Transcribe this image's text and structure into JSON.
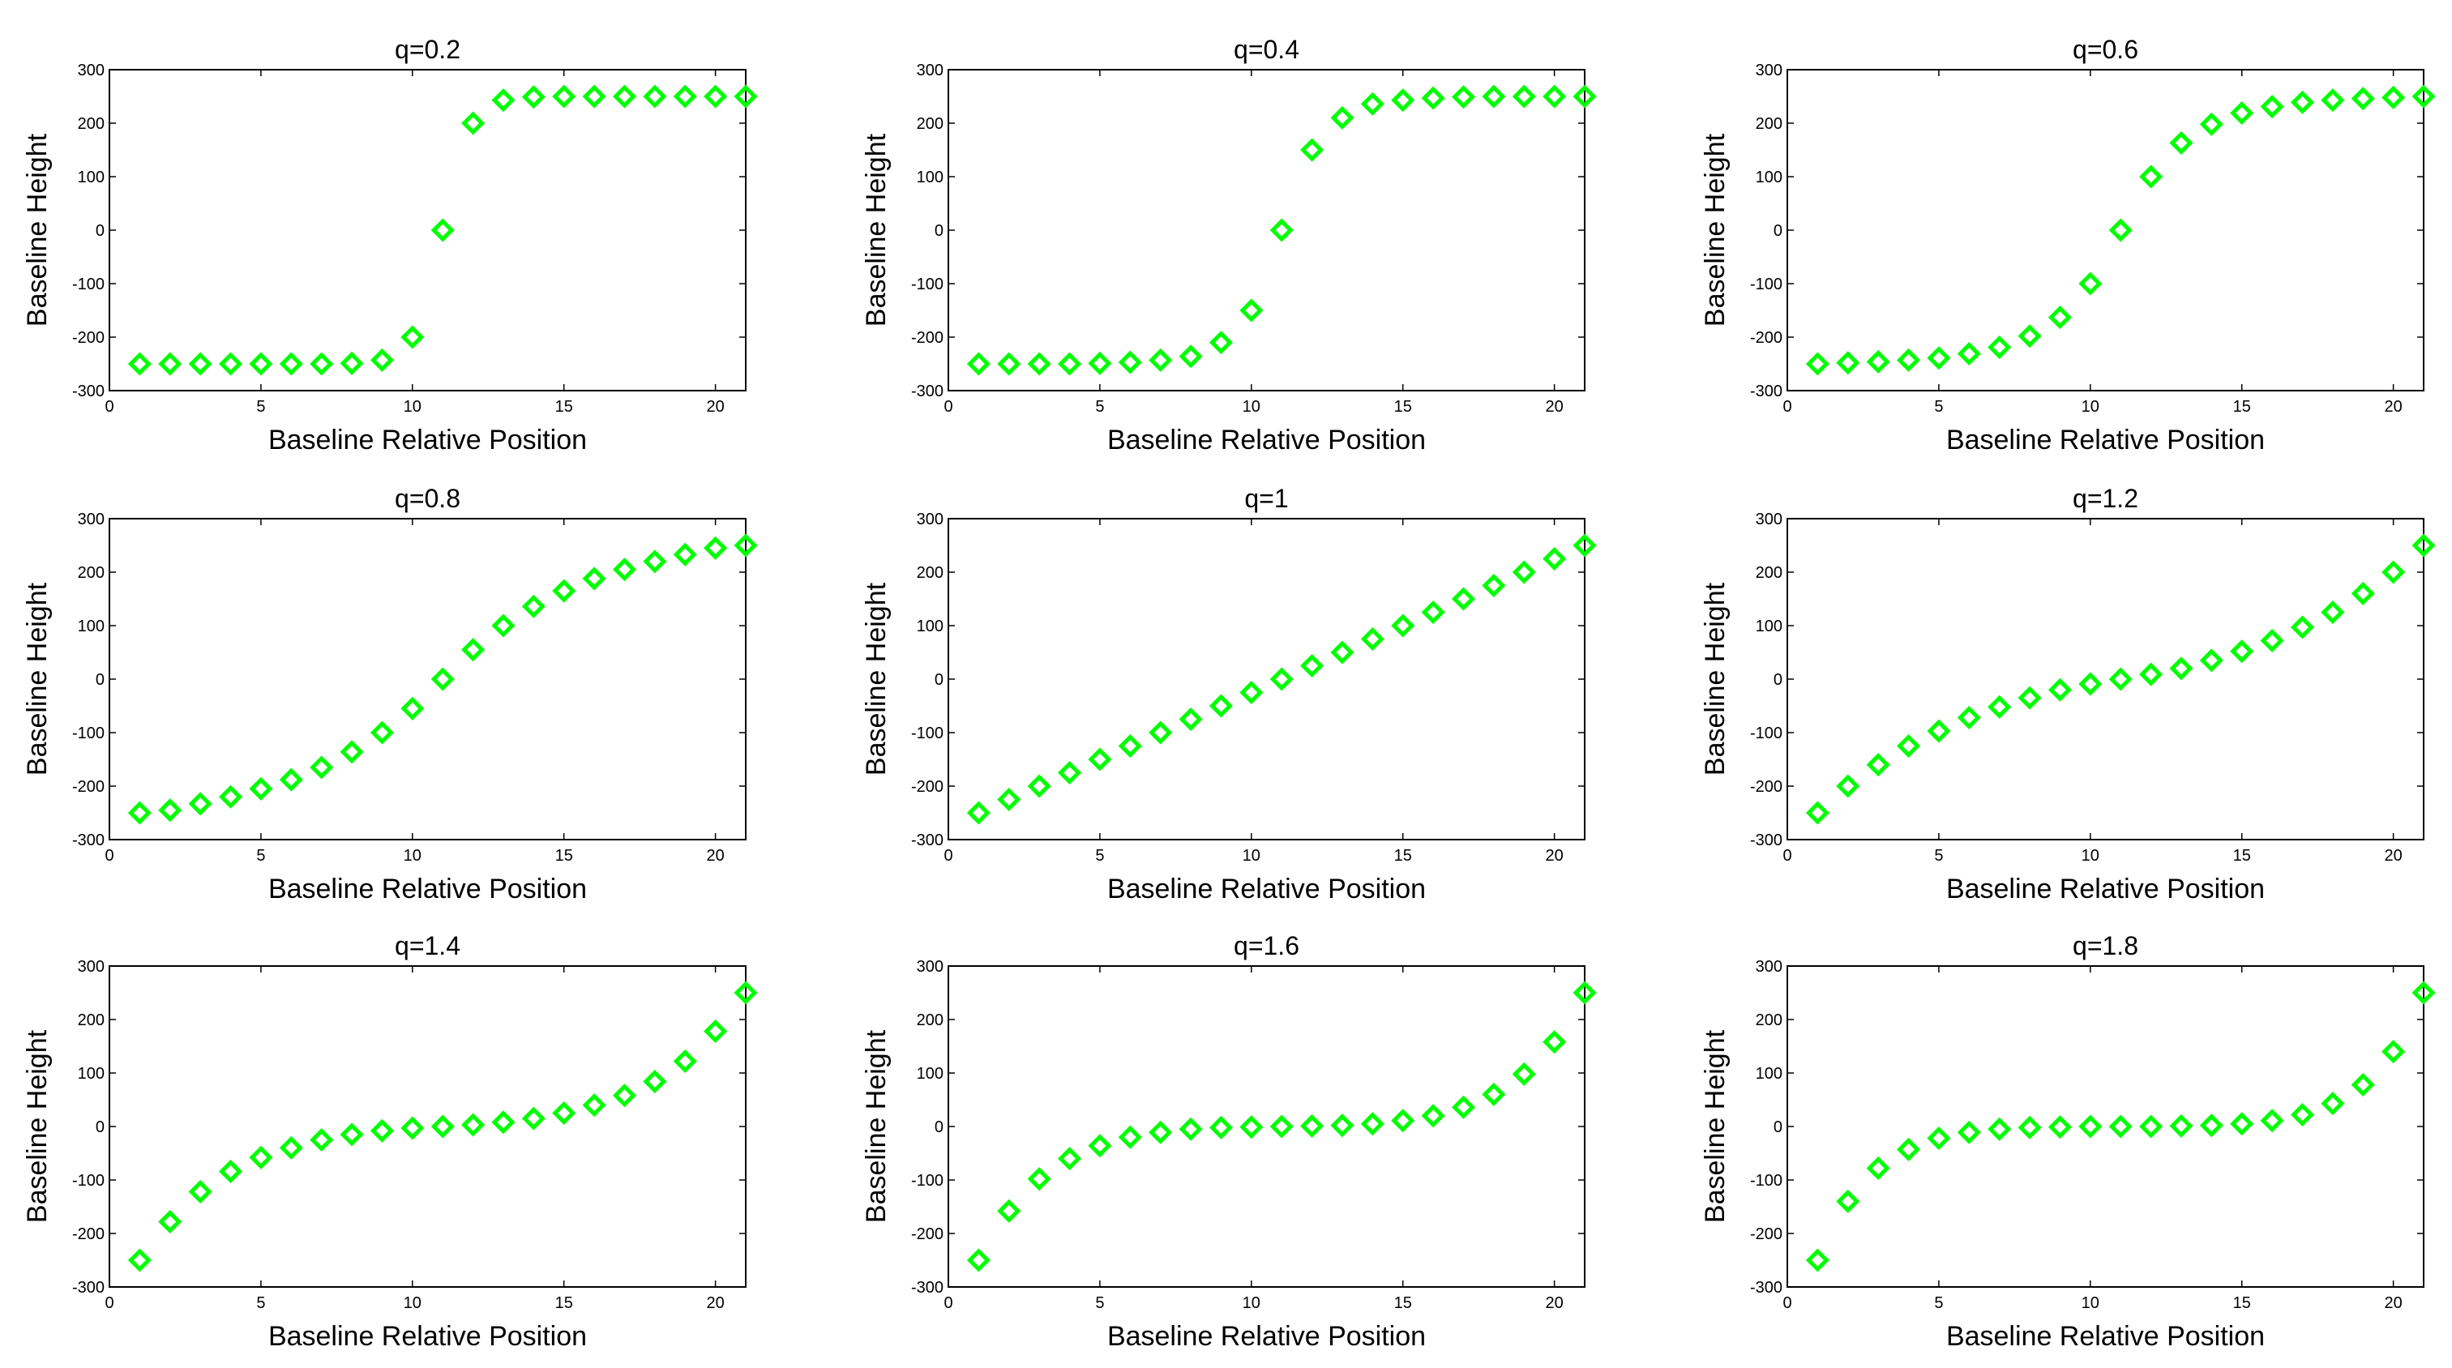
{
  "figure": {
    "xlabel": "Baseline Relative Position",
    "ylabel": "Baseline Height",
    "marker_color": "#00ff00"
  },
  "chart_data": [
    {
      "type": "scatter",
      "title": "q=0.2",
      "xlabel": "Baseline Relative Position",
      "ylabel": "Baseline Height",
      "xlim": [
        0,
        21
      ],
      "ylim": [
        -300,
        300
      ],
      "xticks": [
        0,
        5,
        10,
        15,
        20
      ],
      "yticks": [
        300,
        200,
        100,
        0,
        -100,
        -200,
        -300
      ],
      "marker": "diamond",
      "x": [
        1,
        2,
        3,
        4,
        5,
        6,
        7,
        8,
        9,
        10,
        11,
        12,
        13,
        14,
        15,
        16,
        17,
        18,
        19,
        20,
        21
      ],
      "y": [
        -250,
        -250,
        -250,
        -250,
        -250,
        -250,
        -250,
        -249,
        -243,
        -200,
        0,
        200,
        243,
        249,
        250,
        250,
        250,
        250,
        250,
        250,
        250
      ]
    },
    {
      "type": "scatter",
      "title": "q=0.4",
      "xlabel": "Baseline Relative Position",
      "ylabel": "Baseline Height",
      "xlim": [
        0,
        21
      ],
      "ylim": [
        -300,
        300
      ],
      "xticks": [
        0,
        5,
        10,
        15,
        20
      ],
      "yticks": [
        300,
        200,
        100,
        0,
        -100,
        -200,
        -300
      ],
      "marker": "diamond",
      "x": [
        1,
        2,
        3,
        4,
        5,
        6,
        7,
        8,
        9,
        10,
        11,
        12,
        13,
        14,
        15,
        16,
        17,
        18,
        19,
        20,
        21
      ],
      "y": [
        -250,
        -250,
        -250,
        -250,
        -249,
        -247,
        -243,
        -236,
        -210,
        -150,
        0,
        150,
        210,
        236,
        243,
        247,
        249,
        250,
        250,
        250,
        250
      ]
    },
    {
      "type": "scatter",
      "title": "q=0.6",
      "xlabel": "Baseline Relative Position",
      "ylabel": "Baseline Height",
      "xlim": [
        0,
        21
      ],
      "ylim": [
        -300,
        300
      ],
      "xticks": [
        0,
        5,
        10,
        15,
        20
      ],
      "yticks": [
        300,
        200,
        100,
        0,
        -100,
        -200,
        -300
      ],
      "marker": "diamond",
      "x": [
        1,
        2,
        3,
        4,
        5,
        6,
        7,
        8,
        9,
        10,
        11,
        12,
        13,
        14,
        15,
        16,
        17,
        18,
        19,
        20,
        21
      ],
      "y": [
        -250,
        -248,
        -246,
        -243,
        -239,
        -231,
        -219,
        -198,
        -163,
        -100,
        0,
        100,
        163,
        198,
        219,
        231,
        239,
        243,
        246,
        248,
        250
      ]
    },
    {
      "type": "scatter",
      "title": "q=0.8",
      "xlabel": "Baseline Relative Position",
      "ylabel": "Baseline Height",
      "xlim": [
        0,
        21
      ],
      "ylim": [
        -300,
        300
      ],
      "xticks": [
        0,
        5,
        10,
        15,
        20
      ],
      "yticks": [
        300,
        200,
        100,
        0,
        -100,
        -200,
        -300
      ],
      "marker": "diamond",
      "x": [
        1,
        2,
        3,
        4,
        5,
        6,
        7,
        8,
        9,
        10,
        11,
        12,
        13,
        14,
        15,
        16,
        17,
        18,
        19,
        20,
        21
      ],
      "y": [
        -250,
        -245,
        -233,
        -220,
        -205,
        -188,
        -165,
        -136,
        -100,
        -55,
        0,
        55,
        100,
        136,
        165,
        188,
        205,
        220,
        233,
        245,
        250
      ]
    },
    {
      "type": "scatter",
      "title": "q=1",
      "xlabel": "Baseline Relative Position",
      "ylabel": "Baseline Height",
      "xlim": [
        0,
        21
      ],
      "ylim": [
        -300,
        300
      ],
      "xticks": [
        0,
        5,
        10,
        15,
        20
      ],
      "yticks": [
        300,
        200,
        100,
        0,
        -100,
        -200,
        -300
      ],
      "marker": "diamond",
      "x": [
        1,
        2,
        3,
        4,
        5,
        6,
        7,
        8,
        9,
        10,
        11,
        12,
        13,
        14,
        15,
        16,
        17,
        18,
        19,
        20,
        21
      ],
      "y": [
        -250,
        -225,
        -200,
        -175,
        -150,
        -125,
        -100,
        -75,
        -50,
        -25,
        0,
        25,
        50,
        75,
        100,
        125,
        150,
        175,
        200,
        225,
        250
      ]
    },
    {
      "type": "scatter",
      "title": "q=1.2",
      "xlabel": "Baseline Relative Position",
      "ylabel": "Baseline Height",
      "xlim": [
        0,
        21
      ],
      "ylim": [
        -300,
        300
      ],
      "xticks": [
        0,
        5,
        10,
        15,
        20
      ],
      "yticks": [
        300,
        200,
        100,
        0,
        -100,
        -200,
        -300
      ],
      "marker": "diamond",
      "x": [
        1,
        2,
        3,
        4,
        5,
        6,
        7,
        8,
        9,
        10,
        11,
        12,
        13,
        14,
        15,
        16,
        17,
        18,
        19,
        20,
        21
      ],
      "y": [
        -250,
        -200,
        -160,
        -125,
        -97,
        -72,
        -52,
        -35,
        -20,
        -9,
        0,
        9,
        20,
        35,
        52,
        72,
        97,
        125,
        160,
        200,
        250
      ]
    },
    {
      "type": "scatter",
      "title": "q=1.4",
      "xlabel": "Baseline Relative Position",
      "ylabel": "Baseline Height",
      "xlim": [
        0,
        21
      ],
      "ylim": [
        -300,
        300
      ],
      "xticks": [
        0,
        5,
        10,
        15,
        20
      ],
      "yticks": [
        300,
        200,
        100,
        0,
        -100,
        -200,
        -300
      ],
      "marker": "diamond",
      "x": [
        1,
        2,
        3,
        4,
        5,
        6,
        7,
        8,
        9,
        10,
        11,
        12,
        13,
        14,
        15,
        16,
        17,
        18,
        19,
        20,
        21
      ],
      "y": [
        -250,
        -178,
        -122,
        -84,
        -58,
        -40,
        -25,
        -15,
        -8,
        -3,
        0,
        3,
        8,
        15,
        25,
        40,
        58,
        84,
        122,
        178,
        250
      ]
    },
    {
      "type": "scatter",
      "title": "q=1.6",
      "xlabel": "Baseline Relative Position",
      "ylabel": "Baseline Height",
      "xlim": [
        0,
        21
      ],
      "ylim": [
        -300,
        300
      ],
      "xticks": [
        0,
        5,
        10,
        15,
        20
      ],
      "yticks": [
        300,
        200,
        100,
        0,
        -100,
        -200,
        -300
      ],
      "marker": "diamond",
      "x": [
        1,
        2,
        3,
        4,
        5,
        6,
        7,
        8,
        9,
        10,
        11,
        12,
        13,
        14,
        15,
        16,
        17,
        18,
        19,
        20,
        21
      ],
      "y": [
        -250,
        -158,
        -98,
        -60,
        -36,
        -20,
        -11,
        -5,
        -2,
        -1,
        0,
        1,
        2,
        5,
        11,
        20,
        36,
        60,
        98,
        158,
        250
      ]
    },
    {
      "type": "scatter",
      "title": "q=1.8",
      "xlabel": "Baseline Relative Position",
      "ylabel": "Baseline Height",
      "xlim": [
        0,
        21
      ],
      "ylim": [
        -300,
        300
      ],
      "xticks": [
        0,
        5,
        10,
        15,
        20
      ],
      "yticks": [
        300,
        200,
        100,
        0,
        -100,
        -200,
        -300
      ],
      "marker": "diamond",
      "x": [
        1,
        2,
        3,
        4,
        5,
        6,
        7,
        8,
        9,
        10,
        11,
        12,
        13,
        14,
        15,
        16,
        17,
        18,
        19,
        20,
        21
      ],
      "y": [
        -250,
        -140,
        -78,
        -43,
        -22,
        -11,
        -5,
        -2,
        -1,
        0,
        0,
        0,
        1,
        2,
        5,
        11,
        22,
        43,
        78,
        140,
        250
      ]
    }
  ]
}
